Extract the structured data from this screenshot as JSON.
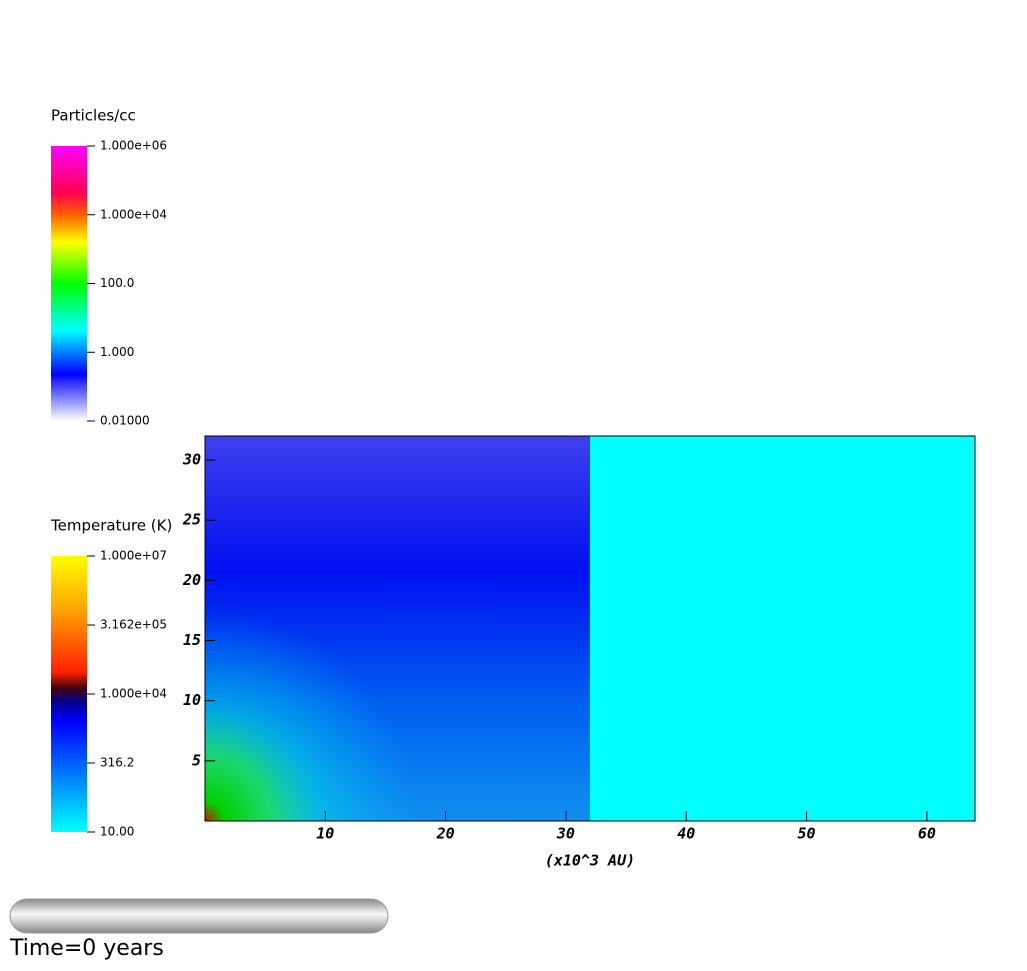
{
  "legends": [
    {
      "title": "Particles/cc",
      "log": true,
      "lim": [
        0.01,
        1000000
      ],
      "ticks": [
        {
          "value": 1000000,
          "label": "1.000e+06"
        },
        {
          "value": 10000,
          "label": "1.000e+04"
        },
        {
          "value": 100,
          "label": "100.0"
        },
        {
          "value": 1,
          "label": "1.000"
        },
        {
          "value": 0.01,
          "label": "0.01000"
        }
      ]
    },
    {
      "title": "Temperature (K)",
      "log": true,
      "lim": [
        10,
        10000000
      ],
      "ticks": [
        {
          "value": 10000000,
          "label": "1.000e+07"
        },
        {
          "value": 316200,
          "label": "3.162e+05"
        },
        {
          "value": 10000,
          "label": "1.000e+04"
        },
        {
          "value": 316.2,
          "label": "316.2"
        },
        {
          "value": 10,
          "label": "10.00"
        }
      ]
    }
  ],
  "plot": {
    "xlabel": "(x10^3 AU)",
    "xlim": [
      0,
      64
    ],
    "xticks": [
      10,
      20,
      30,
      40,
      50,
      60
    ],
    "ylim": [
      0,
      32
    ],
    "yticks": [
      5,
      10,
      15,
      20,
      25,
      30
    ]
  },
  "time_label": "Time=0 years"
}
